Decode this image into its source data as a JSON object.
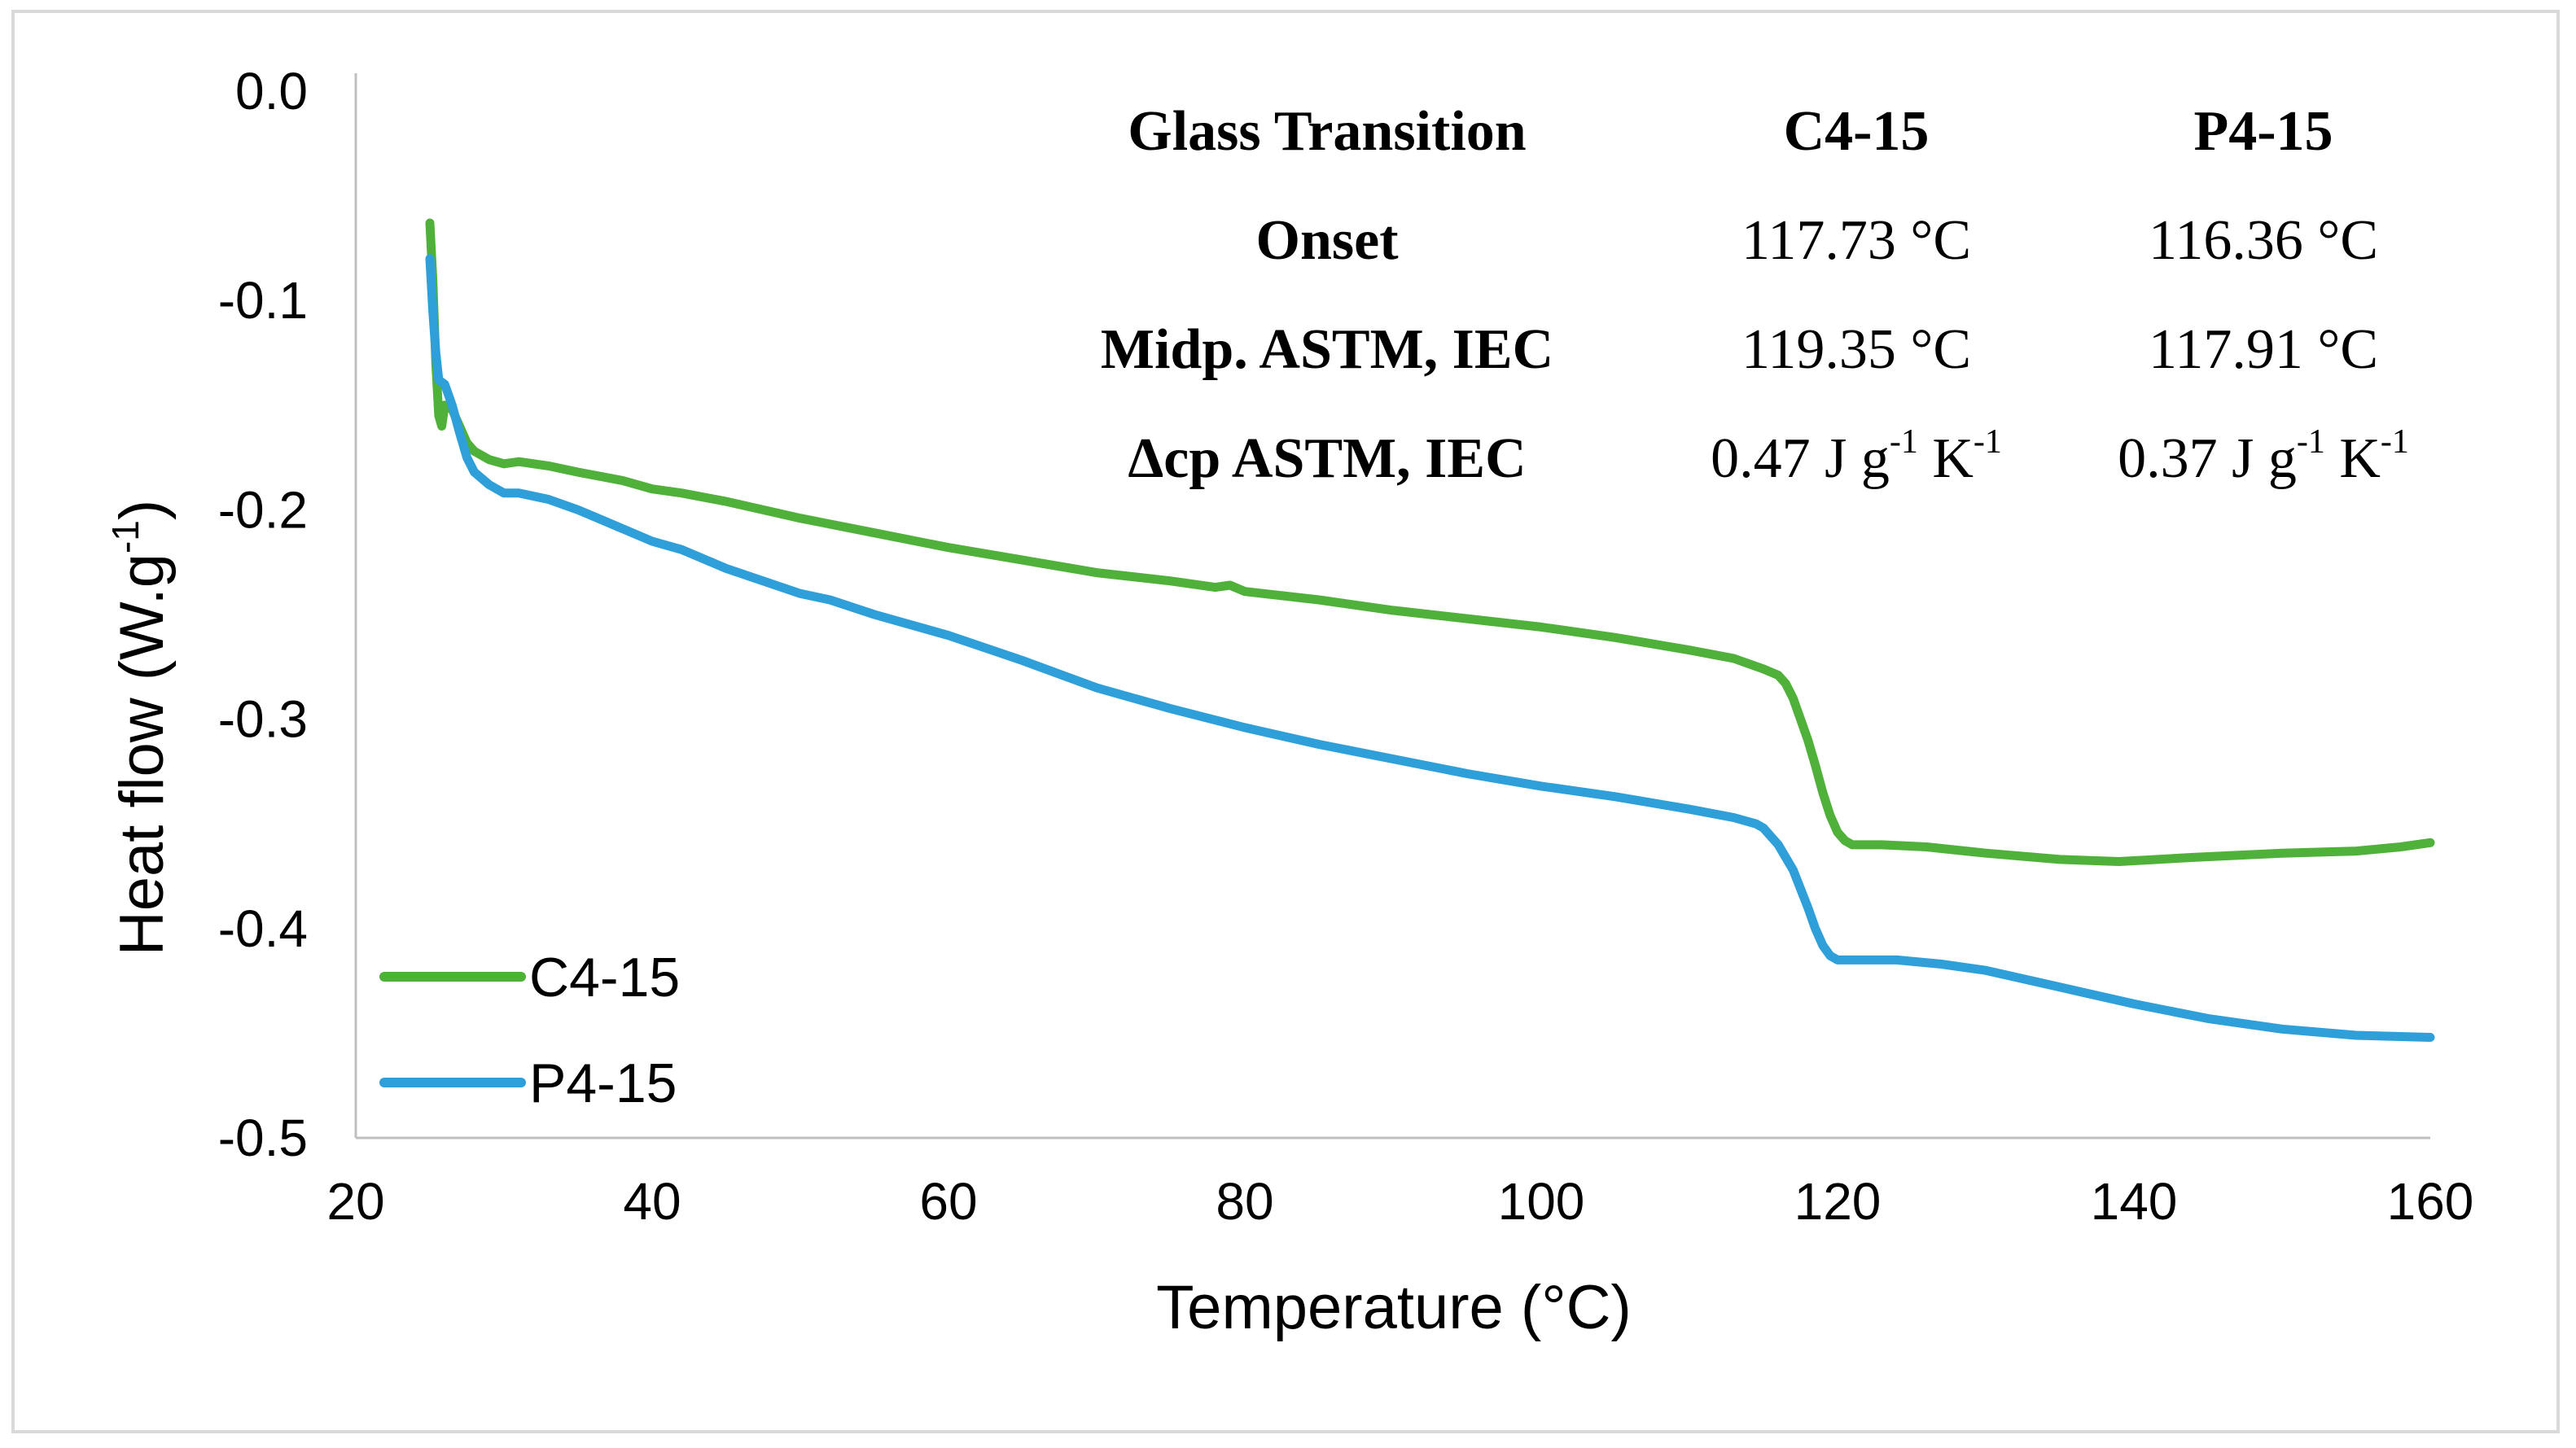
{
  "chart_data": {
    "type": "line",
    "title": "",
    "xlabel": "Temperature (°C)",
    "ylabel": "Heat flow (W.g-1)",
    "ylabel_base": "Heat flow (W.g",
    "ylabel_sup": "-1",
    "ylabel_close": ")",
    "xlim": [
      20,
      160
    ],
    "ylim": [
      -0.5,
      0.0
    ],
    "xticks": [
      20,
      40,
      60,
      80,
      100,
      120,
      140,
      160
    ],
    "yticks": [
      0.0,
      -0.1,
      -0.2,
      -0.3,
      -0.4,
      -0.5
    ],
    "ytick_labels": [
      "0.0",
      "-0.1",
      "-0.2",
      "-0.3",
      "-0.4",
      "-0.5"
    ],
    "grid": false,
    "legend": "bottom-left",
    "series": [
      {
        "name": "C4-15",
        "color": "#4fb03a",
        "points": [
          [
            25.0,
            -0.063
          ],
          [
            25.2,
            -0.09
          ],
          [
            25.4,
            -0.13
          ],
          [
            25.6,
            -0.155
          ],
          [
            25.8,
            -0.16
          ],
          [
            26.0,
            -0.15
          ],
          [
            26.5,
            -0.152
          ],
          [
            27.0,
            -0.16
          ],
          [
            27.5,
            -0.168
          ],
          [
            28,
            -0.172
          ],
          [
            29,
            -0.176
          ],
          [
            30,
            -0.178
          ],
          [
            31,
            -0.177
          ],
          [
            33,
            -0.179
          ],
          [
            35,
            -0.182
          ],
          [
            38,
            -0.186
          ],
          [
            40,
            -0.19
          ],
          [
            42,
            -0.192
          ],
          [
            45,
            -0.196
          ],
          [
            50,
            -0.204
          ],
          [
            55,
            -0.211
          ],
          [
            60,
            -0.218
          ],
          [
            65,
            -0.224
          ],
          [
            70,
            -0.23
          ],
          [
            75,
            -0.234
          ],
          [
            78,
            -0.237
          ],
          [
            79,
            -0.236
          ],
          [
            80,
            -0.239
          ],
          [
            85,
            -0.243
          ],
          [
            90,
            -0.248
          ],
          [
            95,
            -0.252
          ],
          [
            100,
            -0.256
          ],
          [
            105,
            -0.261
          ],
          [
            110,
            -0.267
          ],
          [
            113,
            -0.271
          ],
          [
            115,
            -0.276
          ],
          [
            116,
            -0.279
          ],
          [
            116.5,
            -0.283
          ],
          [
            117,
            -0.29
          ],
          [
            117.5,
            -0.3
          ],
          [
            118,
            -0.31
          ],
          [
            118.5,
            -0.322
          ],
          [
            119,
            -0.335
          ],
          [
            119.5,
            -0.346
          ],
          [
            120,
            -0.354
          ],
          [
            120.5,
            -0.358
          ],
          [
            121,
            -0.36
          ],
          [
            123,
            -0.36
          ],
          [
            126,
            -0.361
          ],
          [
            130,
            -0.364
          ],
          [
            135,
            -0.367
          ],
          [
            139,
            -0.368
          ],
          [
            144,
            -0.366
          ],
          [
            150,
            -0.364
          ],
          [
            155,
            -0.363
          ],
          [
            158,
            -0.361
          ],
          [
            160,
            -0.359
          ]
        ]
      },
      {
        "name": "P4-15",
        "color": "#2e9fd8",
        "points": [
          [
            25.0,
            -0.08
          ],
          [
            25.2,
            -0.105
          ],
          [
            25.4,
            -0.125
          ],
          [
            25.6,
            -0.138
          ],
          [
            26,
            -0.14
          ],
          [
            26.5,
            -0.15
          ],
          [
            27,
            -0.163
          ],
          [
            27.5,
            -0.175
          ],
          [
            28,
            -0.182
          ],
          [
            29,
            -0.188
          ],
          [
            30,
            -0.192
          ],
          [
            31,
            -0.192
          ],
          [
            33,
            -0.195
          ],
          [
            35,
            -0.2
          ],
          [
            37,
            -0.206
          ],
          [
            40,
            -0.215
          ],
          [
            42,
            -0.219
          ],
          [
            45,
            -0.228
          ],
          [
            50,
            -0.24
          ],
          [
            52,
            -0.243
          ],
          [
            55,
            -0.25
          ],
          [
            60,
            -0.26
          ],
          [
            65,
            -0.272
          ],
          [
            70,
            -0.285
          ],
          [
            75,
            -0.295
          ],
          [
            80,
            -0.304
          ],
          [
            85,
            -0.312
          ],
          [
            90,
            -0.319
          ],
          [
            95,
            -0.326
          ],
          [
            100,
            -0.332
          ],
          [
            105,
            -0.337
          ],
          [
            110,
            -0.343
          ],
          [
            113,
            -0.347
          ],
          [
            114.5,
            -0.35
          ],
          [
            115,
            -0.352
          ],
          [
            116,
            -0.36
          ],
          [
            117,
            -0.372
          ],
          [
            118,
            -0.39
          ],
          [
            118.5,
            -0.4
          ],
          [
            119,
            -0.408
          ],
          [
            119.5,
            -0.413
          ],
          [
            120,
            -0.415
          ],
          [
            121,
            -0.415
          ],
          [
            124,
            -0.415
          ],
          [
            127,
            -0.417
          ],
          [
            130,
            -0.42
          ],
          [
            135,
            -0.428
          ],
          [
            140,
            -0.436
          ],
          [
            145,
            -0.443
          ],
          [
            150,
            -0.448
          ],
          [
            155,
            -0.451
          ],
          [
            160,
            -0.452
          ]
        ]
      }
    ]
  },
  "table": {
    "header": [
      "Glass Transition",
      "C4-15",
      "P4-15"
    ],
    "rows": [
      {
        "label": "Onset",
        "c4": "117.73 °C",
        "p4": "116.36 °C"
      },
      {
        "label": "Midp. ASTM, IEC",
        "c4": "119.35 °C",
        "p4": "117.91 °C"
      },
      {
        "label": "Δcp ASTM, IEC",
        "c4": {
          "a": "0.47 J g",
          "s1": "-1",
          "b": " K",
          "s2": "-1"
        },
        "p4": {
          "a": "0.37 J g",
          "s1": "-1",
          "b": " K",
          "s2": "-1"
        }
      }
    ]
  }
}
